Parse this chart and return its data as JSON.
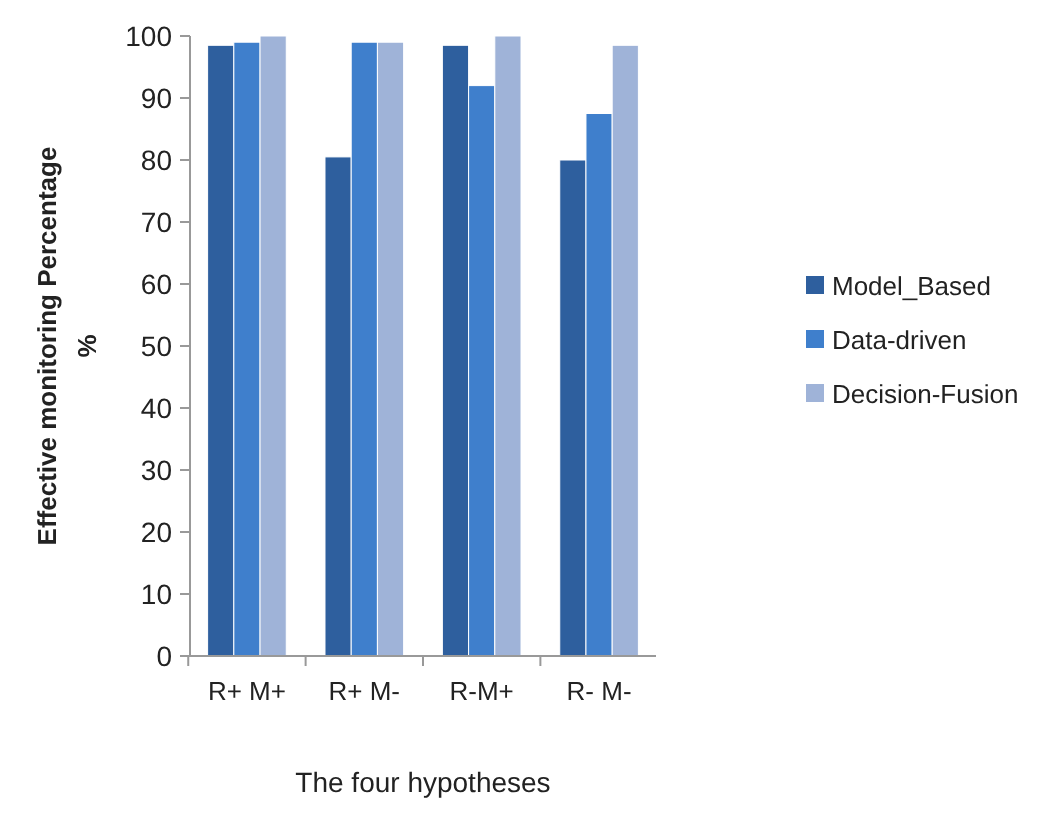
{
  "chart_data": {
    "type": "bar",
    "xlabel": "The four hypotheses",
    "ylabel": "Effective monitoring Percentage %",
    "categories": [
      "R+ M+",
      "R+ M-",
      "R-M+",
      "R- M-"
    ],
    "series": [
      {
        "name": "Model_Based",
        "color": "#2e5f9e",
        "values": [
          98.5,
          80.5,
          98.5,
          80
        ]
      },
      {
        "name": "Data-driven",
        "color": "#3f7fcc",
        "values": [
          99,
          99,
          92,
          87.5
        ]
      },
      {
        "name": "Decision-Fusion",
        "color": "#9fb3d8",
        "values": [
          100,
          99,
          100,
          98.5
        ]
      }
    ],
    "ylim": [
      0,
      100
    ],
    "yticks": [
      0,
      10,
      20,
      30,
      40,
      50,
      60,
      70,
      80,
      90,
      100
    ],
    "legend": "right"
  }
}
